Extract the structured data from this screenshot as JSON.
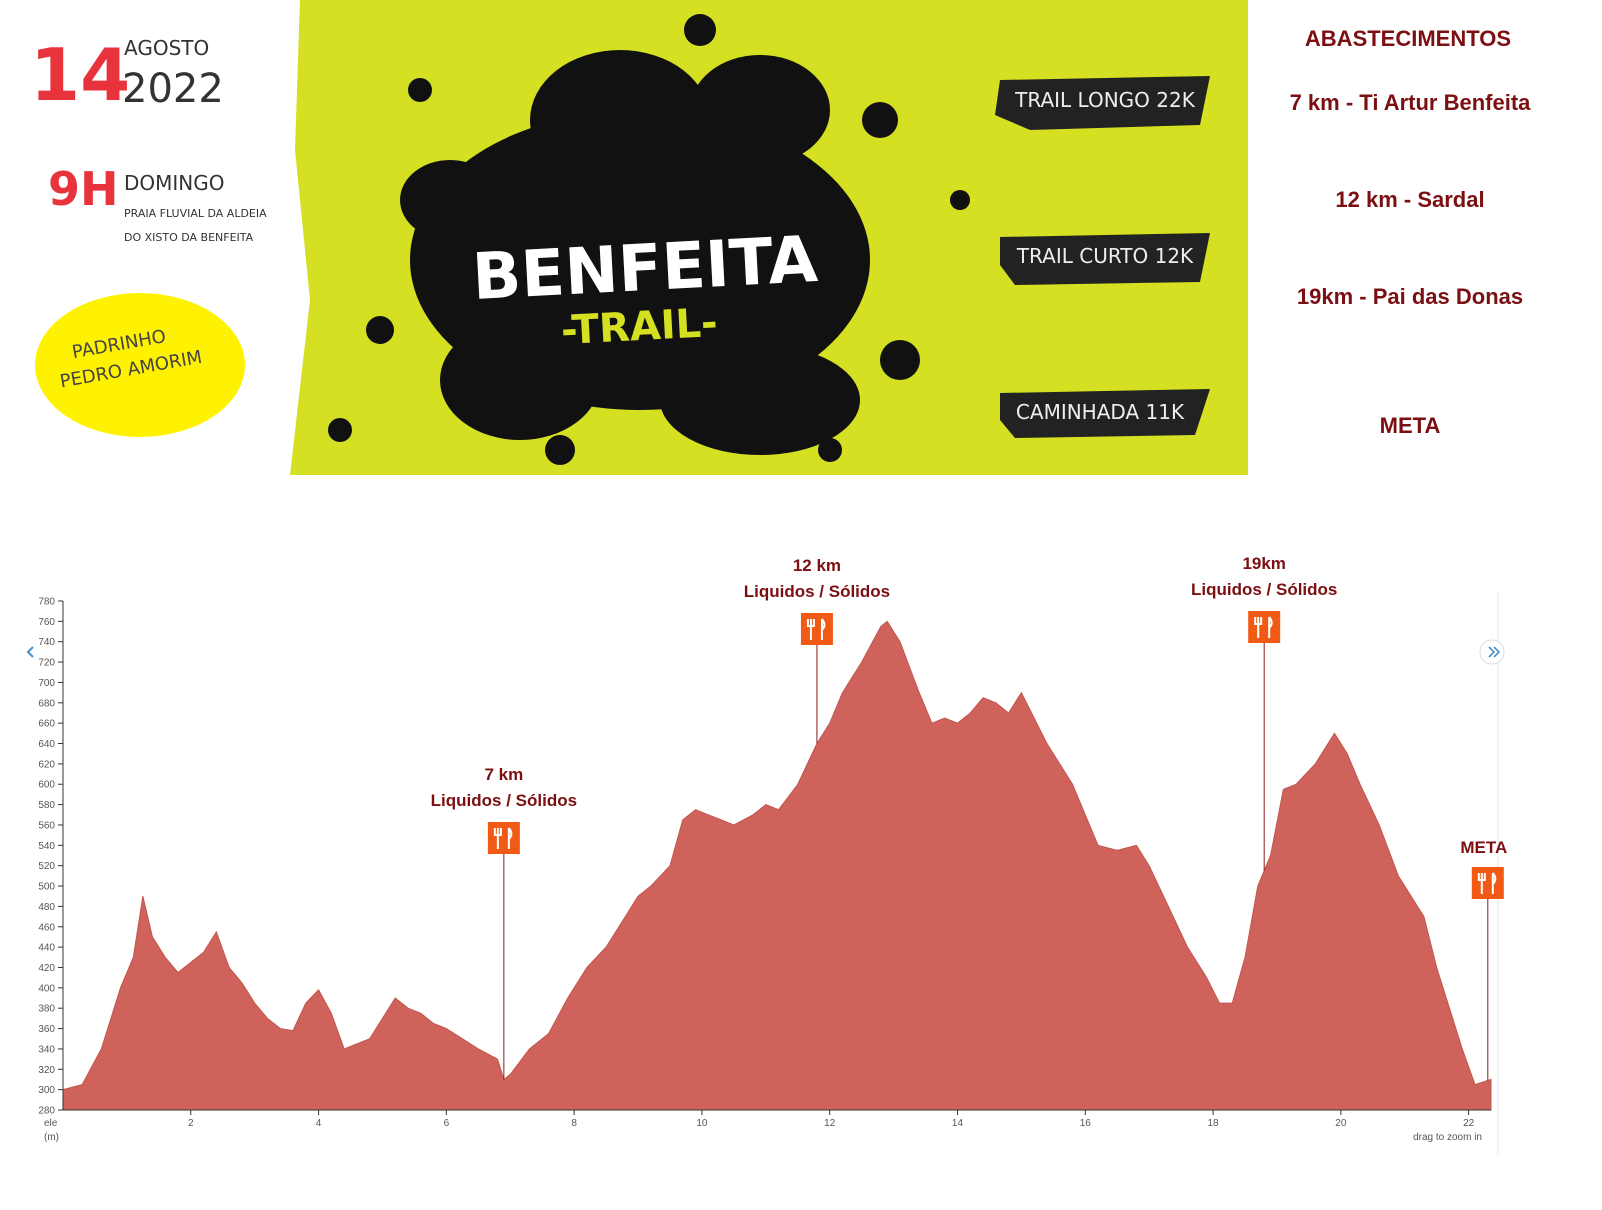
{
  "banner": {
    "day": "14",
    "month": "AGOSTO",
    "year": "2022",
    "hour": "9H",
    "weekday": "DOMINGO",
    "place_lines": [
      "PRAIA FLUVIAL DA ALDEIA",
      "DO XISTO DA BENFEITA"
    ],
    "godfather_lines": [
      "PADRINHO",
      "PEDRO AMORIM"
    ],
    "title": "BENFEITA",
    "subtitle": "-TRAIL-",
    "races": [
      "TRAIL LONGO 22K",
      "TRAIL CURTO 12K",
      "CAMINHADA 11K"
    ]
  },
  "supplies": {
    "title": "ABASTECIMENTOS",
    "items": [
      "7 km - Ti Artur Benfeita",
      "12 km - Sardal",
      "19km - Pai das Donas",
      "META"
    ]
  },
  "chart_data": {
    "type": "area",
    "color": "#cf635b",
    "ylabel": [
      "ele",
      "(m)"
    ],
    "note": "drag to zoom in",
    "x": [
      0,
      0.3,
      0.6,
      0.9,
      1.1,
      1.25,
      1.4,
      1.6,
      1.8,
      2.0,
      2.2,
      2.4,
      2.6,
      2.8,
      3.0,
      3.2,
      3.4,
      3.6,
      3.8,
      4.0,
      4.2,
      4.4,
      4.6,
      4.8,
      5.0,
      5.2,
      5.4,
      5.6,
      5.8,
      6.0,
      6.2,
      6.5,
      6.8,
      6.9,
      7.0,
      7.3,
      7.6,
      7.9,
      8.2,
      8.5,
      8.8,
      9.0,
      9.2,
      9.5,
      9.7,
      9.9,
      10.1,
      10.3,
      10.5,
      10.8,
      11.0,
      11.2,
      11.5,
      11.8,
      12.0,
      12.2,
      12.5,
      12.8,
      12.9,
      13.1,
      13.4,
      13.6,
      13.8,
      14.0,
      14.2,
      14.4,
      14.6,
      14.8,
      15.0,
      15.2,
      15.4,
      15.6,
      15.8,
      16.0,
      16.2,
      16.5,
      16.8,
      17.0,
      17.3,
      17.6,
      17.9,
      18.1,
      18.3,
      18.5,
      18.7,
      18.9,
      19.1,
      19.3,
      19.6,
      19.9,
      20.1,
      20.3,
      20.6,
      20.9,
      21.1,
      21.3,
      21.5,
      21.7,
      21.9,
      22.1,
      22.35
    ],
    "values": [
      300,
      305,
      340,
      400,
      430,
      490,
      450,
      430,
      415,
      425,
      435,
      455,
      420,
      405,
      385,
      370,
      360,
      358,
      385,
      398,
      375,
      340,
      345,
      350,
      370,
      390,
      380,
      375,
      365,
      360,
      352,
      340,
      330,
      310,
      315,
      340,
      355,
      390,
      420,
      440,
      470,
      490,
      500,
      520,
      565,
      575,
      570,
      565,
      560,
      570,
      580,
      575,
      600,
      640,
      660,
      690,
      720,
      755,
      760,
      740,
      690,
      660,
      665,
      660,
      670,
      685,
      680,
      670,
      690,
      665,
      640,
      620,
      600,
      570,
      540,
      535,
      540,
      520,
      480,
      440,
      410,
      385,
      385,
      430,
      500,
      530,
      595,
      600,
      620,
      650,
      630,
      600,
      560,
      510,
      490,
      470,
      420,
      380,
      340,
      305,
      310
    ],
    "xlim": [
      0,
      22.35
    ],
    "ylim": [
      280,
      780
    ],
    "xticks": [
      2,
      4,
      6,
      8,
      10,
      12,
      14,
      16,
      18,
      20,
      22
    ],
    "yticks": [
      280,
      300,
      320,
      340,
      360,
      380,
      400,
      420,
      440,
      460,
      480,
      500,
      520,
      540,
      560,
      580,
      600,
      620,
      640,
      660,
      680,
      700,
      720,
      740,
      760,
      780
    ],
    "annotations": [
      {
        "x": 6.9,
        "label": "7 km",
        "sublabel": "Liquidos / Sólidos"
      },
      {
        "x": 11.8,
        "label": "12 km",
        "sublabel": "Liquidos / Sólidos"
      },
      {
        "x": 18.8,
        "label": "19km",
        "sublabel": "Liquidos / Sólidos"
      },
      {
        "x": 22.3,
        "label": "META"
      }
    ]
  }
}
